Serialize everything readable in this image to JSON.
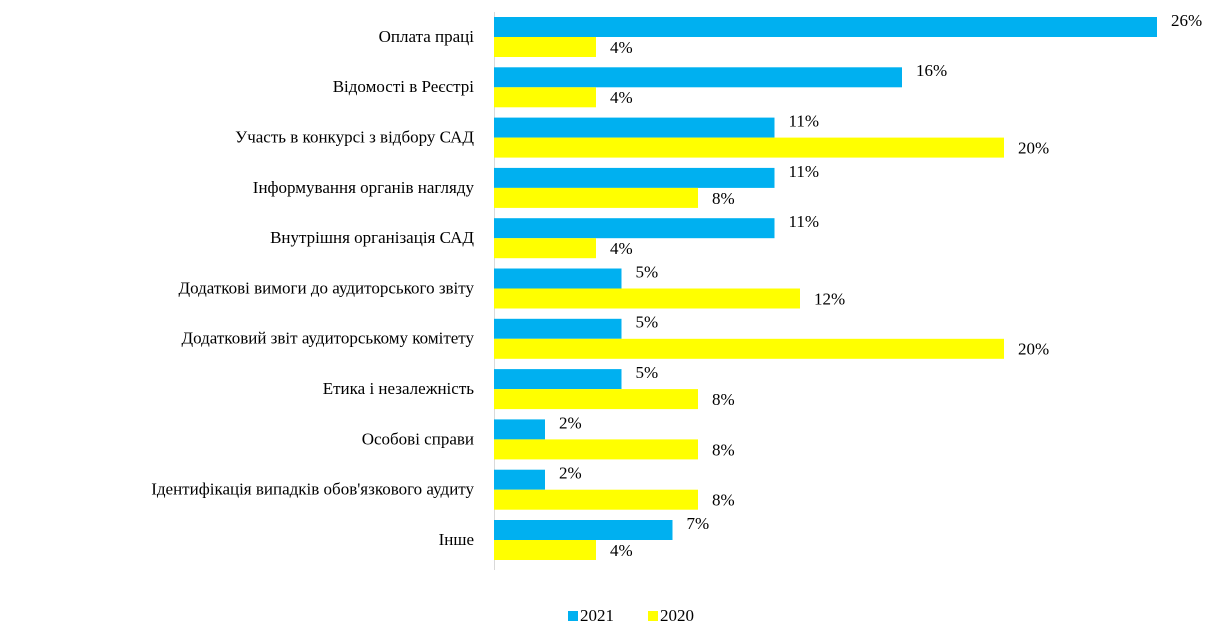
{
  "chart_data": {
    "type": "hbar",
    "categories": [
      "Оплата праці",
      "Відомості в Реєстрі",
      "Участь в конкурсі з відбору САД",
      "Інформування органів нагляду",
      "Внутрішня організація САД",
      "Додаткові вимоги до аудиторського звіту",
      "Додатковий звіт аудиторському комітету",
      "Етика і незалежність",
      "Особові справи",
      "Ідентифікація випадків обов'язкового аудиту",
      "Інше"
    ],
    "series": [
      {
        "name": "2021",
        "color": "#00b0f0",
        "values": [
          26,
          16,
          11,
          11,
          11,
          5,
          5,
          5,
          2,
          2,
          7
        ],
        "value_labels": [
          "26%",
          "16%",
          "11%",
          "11%",
          "11%",
          "5%",
          "5%",
          "5%",
          "2%",
          "2%",
          "7%"
        ]
      },
      {
        "name": "2020",
        "color": "#ffff00",
        "values": [
          4,
          4,
          20,
          8,
          4,
          12,
          20,
          8,
          8,
          8,
          4
        ],
        "value_labels": [
          "4%",
          "4%",
          "20%",
          "8%",
          "4%",
          "12%",
          "20%",
          "8%",
          "8%",
          "8%",
          "4%"
        ]
      }
    ],
    "legend": "bottom"
  }
}
